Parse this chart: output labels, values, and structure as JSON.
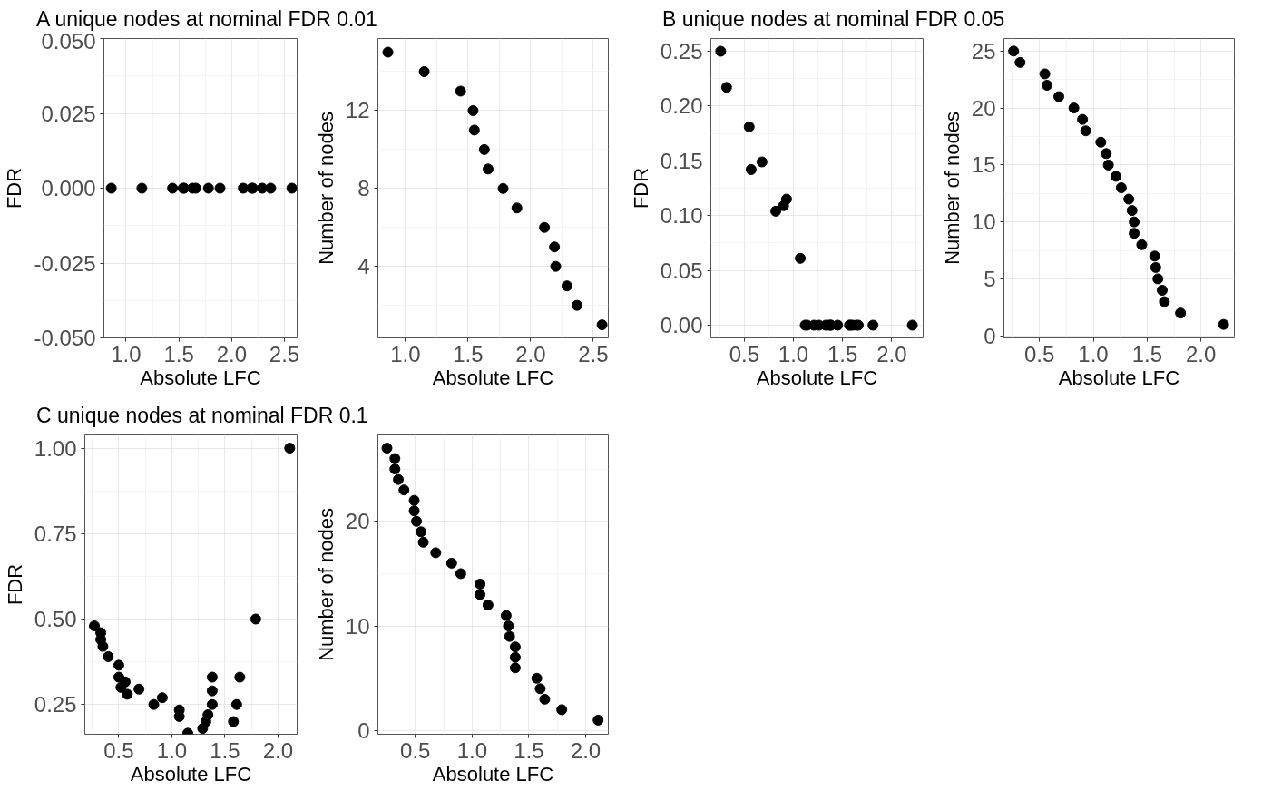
{
  "chart_data": [
    {
      "type": "scatter",
      "title": "A unique nodes at nominal FDR 0.01",
      "xlabel": "Absolute LFC",
      "ylabel": "FDR",
      "color": "#000000",
      "marker": "circle",
      "grid": true,
      "x": [
        0.86,
        1.15,
        1.44,
        1.54,
        1.55,
        1.63,
        1.66,
        1.78,
        1.89,
        2.11,
        2.19,
        2.2,
        2.29,
        2.37,
        2.57
      ],
      "values": [
        0,
        0,
        0,
        0,
        0,
        0,
        0,
        0,
        0,
        0,
        0,
        0,
        0,
        0,
        0
      ],
      "xlim": [
        0.79,
        2.62
      ],
      "ylim": [
        -0.05,
        0.05
      ],
      "xticks": [
        {
          "value": 1,
          "label": "1.0"
        },
        {
          "value": 1.5,
          "label": "1.5"
        },
        {
          "value": 2,
          "label": "2.0"
        },
        {
          "value": 2.5,
          "label": "2.5"
        }
      ],
      "yticks": [
        {
          "value": -0.05,
          "label": "-0.050"
        },
        {
          "value": -0.025,
          "label": "-0.025"
        },
        {
          "value": 0,
          "label": "0.000"
        },
        {
          "value": 0.025,
          "label": "0.025"
        },
        {
          "value": 0.05,
          "label": "0.050"
        }
      ]
    },
    {
      "type": "scatter",
      "xlabel": "Absolute LFC",
      "ylabel": "Number of nodes",
      "color": "#000000",
      "marker": "circle",
      "grid": true,
      "x": [
        0.86,
        1.15,
        1.44,
        1.54,
        1.55,
        1.63,
        1.66,
        1.78,
        1.89,
        2.11,
        2.19,
        2.2,
        2.29,
        2.37,
        2.57
      ],
      "values": [
        15,
        14,
        13,
        12,
        11,
        10,
        9,
        8,
        7,
        6,
        5,
        4,
        3,
        2,
        1
      ],
      "xlim": [
        0.78,
        2.62
      ],
      "ylim": [
        0.33,
        15.7
      ],
      "xticks": [
        {
          "value": 1,
          "label": "1.0"
        },
        {
          "value": 1.5,
          "label": "1.5"
        },
        {
          "value": 2,
          "label": "2.0"
        },
        {
          "value": 2.5,
          "label": "2.5"
        }
      ],
      "yticks": [
        4,
        8,
        12
      ]
    },
    {
      "type": "scatter",
      "title": "B unique nodes at nominal FDR 0.05",
      "xlabel": "Absolute LFC",
      "ylabel": "FDR",
      "color": "#000000",
      "marker": "circle",
      "grid": true,
      "x": [
        0.26,
        0.32,
        0.55,
        0.57,
        0.68,
        0.82,
        0.9,
        0.93,
        1.07,
        1.12,
        1.14,
        1.21,
        1.26,
        1.33,
        1.36,
        1.38,
        1.38,
        1.45,
        1.57,
        1.58,
        1.6,
        1.64,
        1.66,
        1.81,
        2.21
      ],
      "values": [
        0.25,
        0.217,
        0.181,
        0.142,
        0.149,
        0.104,
        0.109,
        0.115,
        0.061,
        0,
        0,
        0,
        0,
        0,
        0,
        0,
        0,
        0,
        0,
        0,
        0,
        0,
        0,
        0,
        0
      ],
      "xlim": [
        0.16,
        2.32
      ],
      "ylim": [
        -0.0116,
        0.2616
      ],
      "xticks": [
        {
          "value": 0.5,
          "label": "0.5"
        },
        {
          "value": 1,
          "label": "1.0"
        },
        {
          "value": 1.5,
          "label": "1.5"
        },
        {
          "value": 2,
          "label": "2.0"
        }
      ],
      "yticks": [
        {
          "value": 0,
          "label": "0.00"
        },
        0.05,
        {
          "value": 0.1,
          "label": "0.10"
        },
        0.15,
        {
          "value": 0.2,
          "label": "0.20"
        },
        0.25
      ]
    },
    {
      "type": "scatter",
      "xlabel": "Absolute LFC",
      "ylabel": "Number of nodes",
      "color": "#000000",
      "marker": "circle",
      "grid": true,
      "x": [
        0.26,
        0.32,
        0.55,
        0.57,
        0.68,
        0.82,
        0.9,
        0.93,
        1.07,
        1.12,
        1.14,
        1.21,
        1.26,
        1.33,
        1.36,
        1.38,
        1.38,
        1.45,
        1.57,
        1.58,
        1.6,
        1.64,
        1.66,
        1.81,
        2.21
      ],
      "values": [
        25,
        24,
        23,
        22,
        21,
        20,
        19,
        18,
        17,
        16,
        15,
        14,
        13,
        12,
        11,
        10,
        9,
        8,
        7,
        6,
        5,
        4,
        3,
        2,
        1
      ],
      "xlim": [
        0.17,
        2.31
      ],
      "ylim": [
        -0.18,
        26.1
      ],
      "xticks": [
        {
          "value": 0.5,
          "label": "0.5"
        },
        {
          "value": 1,
          "label": "1.0"
        },
        {
          "value": 1.5,
          "label": "1.5"
        },
        {
          "value": 2,
          "label": "2.0"
        }
      ],
      "yticks": [
        0,
        5,
        10,
        15,
        20,
        25
      ]
    },
    {
      "type": "scatter",
      "title": "C unique nodes at nominal FDR 0.1",
      "xlabel": "Absolute LFC",
      "ylabel": "FDR",
      "color": "#000000",
      "marker": "circle",
      "grid": true,
      "x": [
        0.27,
        0.33,
        0.33,
        0.35,
        0.4,
        0.5,
        0.5,
        0.56,
        0.52,
        0.58,
        0.69,
        0.83,
        0.91,
        1.07,
        1.07,
        1.15,
        1.29,
        1.32,
        1.34,
        1.38,
        1.38,
        1.38,
        1.58,
        1.61,
        1.64,
        1.79,
        2.11
      ],
      "values": [
        0.48,
        0.46,
        0.44,
        0.42,
        0.39,
        0.365,
        0.33,
        0.316,
        0.3,
        0.28,
        0.295,
        0.25,
        0.27,
        0.234,
        0.215,
        0.166,
        0.18,
        0.2,
        0.22,
        0.33,
        0.29,
        0.25,
        0.2,
        0.25,
        0.33,
        0.5,
        1.0
      ],
      "xlim": [
        0.18,
        2.18
      ],
      "ylim": [
        0.163,
        1.0386
      ],
      "xticks": [
        {
          "value": 0.5,
          "label": "0.5"
        },
        {
          "value": 1,
          "label": "1.0"
        },
        {
          "value": 1.5,
          "label": "1.5"
        },
        {
          "value": 2,
          "label": "2.0"
        }
      ],
      "yticks": [
        0.25,
        {
          "value": 0.5,
          "label": "0.50"
        },
        0.75,
        {
          "value": 1,
          "label": "1.00"
        }
      ]
    },
    {
      "type": "scatter",
      "xlabel": "Absolute LFC",
      "ylabel": "Number of nodes",
      "color": "#000000",
      "marker": "circle",
      "grid": true,
      "x": [
        0.25,
        0.32,
        0.32,
        0.35,
        0.4,
        0.49,
        0.49,
        0.51,
        0.55,
        0.57,
        0.68,
        0.82,
        0.9,
        1.07,
        1.07,
        1.14,
        1.3,
        1.32,
        1.33,
        1.38,
        1.38,
        1.38,
        1.57,
        1.6,
        1.64,
        1.79,
        2.11
      ],
      "values": [
        27,
        26,
        25,
        24,
        23,
        22,
        21,
        20,
        19,
        18,
        17,
        16,
        15,
        14,
        13,
        12,
        11,
        10,
        9,
        8,
        7,
        6,
        5,
        4,
        3,
        2,
        1
      ],
      "xlim": [
        0.17,
        2.2
      ],
      "ylim": [
        -0.35,
        28.26
      ],
      "xticks": [
        {
          "value": 0.5,
          "label": "0.5"
        },
        {
          "value": 1,
          "label": "1.0"
        },
        {
          "value": 1.5,
          "label": "1.5"
        },
        {
          "value": 2,
          "label": "2.0"
        }
      ],
      "yticks": [
        0,
        10,
        20
      ]
    }
  ]
}
